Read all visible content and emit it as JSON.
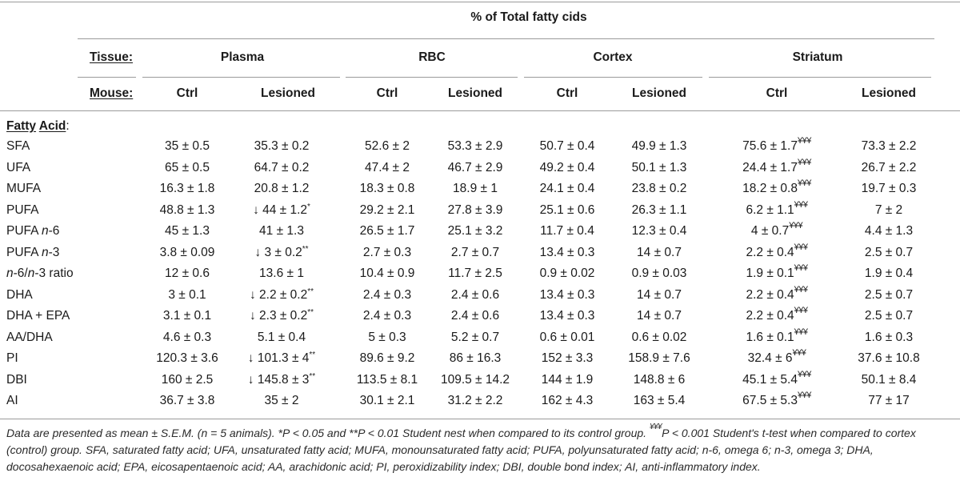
{
  "table": {
    "title": "% of Total fatty cids",
    "tissue_label": "Tissue:",
    "mouse_label": "Mouse:",
    "tissues": [
      "Plasma",
      "RBC",
      "Cortex",
      "Striatum"
    ],
    "groups": [
      "Ctrl",
      "Lesioned",
      "Ctrl",
      "Lesioned",
      "Ctrl",
      "Lesioned",
      "Ctrl",
      "Lesioned"
    ],
    "fatty_acid_header": {
      "word1": "Fatty",
      "word2": "Acid",
      "colon": ":"
    },
    "rows": [
      {
        "label": "SFA",
        "values": [
          "35 ± 0.5",
          "35.3 ± 0.2",
          "52.6 ± 2",
          "53.3 ± 2.9",
          "50.7 ± 0.4",
          "49.9 ± 1.3",
          "75.6 ± 1.7",
          "73.3 ± 2.2"
        ],
        "sup": [
          "",
          "",
          "",
          "",
          "",
          "",
          "¥¥¥",
          ""
        ]
      },
      {
        "label": "UFA",
        "values": [
          "65 ± 0.5",
          "64.7 ± 0.2",
          "47.4 ± 2",
          "46.7 ± 2.9",
          "49.2 ± 0.4",
          "50.1 ± 1.3",
          "24.4 ± 1.7",
          "26.7 ± 2.2"
        ],
        "sup": [
          "",
          "",
          "",
          "",
          "",
          "",
          "¥¥¥",
          ""
        ]
      },
      {
        "label": "MUFA",
        "values": [
          "16.3 ± 1.8",
          "20.8 ± 1.2",
          "18.3 ± 0.8",
          "18.9 ± 1",
          "24.1 ± 0.4",
          "23.8 ± 0.2",
          "18.2 ± 0.8",
          "19.7 ± 0.3"
        ],
        "sup": [
          "",
          "",
          "",
          "",
          "",
          "",
          "¥¥¥",
          ""
        ]
      },
      {
        "label": "PUFA",
        "values": [
          "48.8 ± 1.3",
          "↓ 44 ± 1.2",
          "29.2 ± 2.1",
          "27.8 ± 3.9",
          "25.1 ± 0.6",
          "26.3 ± 1.1",
          "6.2 ± 1.1",
          "7 ± 2"
        ],
        "sup": [
          "",
          "*",
          "",
          "",
          "",
          "",
          "¥¥¥",
          ""
        ]
      },
      {
        "label_pre": "PUFA ",
        "label_it": "n",
        "label_post": "-6",
        "values": [
          "45 ± 1.3",
          "41 ± 1.3",
          "26.5 ± 1.7",
          "25.1 ± 3.2",
          "11.7 ± 0.4",
          "12.3 ± 0.4",
          "4 ± 0.7",
          "4.4 ± 1.3"
        ],
        "sup": [
          "",
          "",
          "",
          "",
          "",
          "",
          "¥¥¥",
          ""
        ]
      },
      {
        "label_pre": "PUFA ",
        "label_it": "n",
        "label_post": "-3",
        "values": [
          "3.8 ± 0.09",
          "↓ 3 ± 0.2",
          "2.7 ± 0.3",
          "2.7 ± 0.7",
          "13.4 ± 0.3",
          "14 ± 0.7",
          "2.2 ± 0.4",
          "2.5 ± 0.7"
        ],
        "sup": [
          "",
          "**",
          "",
          "",
          "",
          "",
          "¥¥¥",
          ""
        ]
      },
      {
        "label_pre": "",
        "label_it": "n",
        "label_post": "-6/",
        "label_it2": "n",
        "label_post2": "-3 ratio",
        "values": [
          "12 ± 0.6",
          "13.6 ± 1",
          "10.4 ± 0.9",
          "11.7 ± 2.5",
          "0.9 ± 0.02",
          "0.9 ± 0.03",
          "1.9 ± 0.1",
          "1.9 ± 0.4"
        ],
        "sup": [
          "",
          "",
          "",
          "",
          "",
          "",
          "¥¥¥",
          ""
        ]
      },
      {
        "label": "DHA",
        "values": [
          "3 ± 0.1",
          "↓ 2.2 ± 0.2",
          "2.4 ± 0.3",
          "2.4 ± 0.6",
          "13.4 ± 0.3",
          "14 ± 0.7",
          "2.2 ± 0.4",
          "2.5 ± 0.7"
        ],
        "sup": [
          "",
          "**",
          "",
          "",
          "",
          "",
          "¥¥¥",
          ""
        ]
      },
      {
        "label": "DHA + EPA",
        "values": [
          "3.1 ± 0.1",
          "↓ 2.3 ± 0.2",
          "2.4 ± 0.3",
          "2.4 ± 0.6",
          "13.4 ± 0.3",
          "14 ± 0.7",
          "2.2 ± 0.4",
          "2.5 ± 0.7"
        ],
        "sup": [
          "",
          "**",
          "",
          "",
          "",
          "",
          "¥¥¥",
          ""
        ]
      },
      {
        "label": "AA/DHA",
        "values": [
          "4.6 ± 0.3",
          "5.1 ± 0.4",
          "5 ± 0.3",
          "5.2 ± 0.7",
          "0.6 ± 0.01",
          "0.6 ± 0.02",
          "1.6 ± 0.1",
          "1.6 ± 0.3"
        ],
        "sup": [
          "",
          "",
          "",
          "",
          "",
          "",
          "¥¥¥",
          ""
        ]
      },
      {
        "label": "PI",
        "values": [
          "120.3 ± 3.6",
          "↓ 101.3 ± 4",
          "89.6 ± 9.2",
          "86 ± 16.3",
          "152 ± 3.3",
          "158.9 ± 7.6",
          "32.4 ± 6",
          "37.6 ± 10.8"
        ],
        "sup": [
          "",
          "**",
          "",
          "",
          "",
          "",
          "¥¥¥",
          ""
        ]
      },
      {
        "label": "DBI",
        "values": [
          "160 ± 2.5",
          "↓ 145.8 ± 3",
          "113.5 ± 8.1",
          "109.5 ± 14.2",
          "144 ± 1.9",
          "148.8 ± 6",
          "45.1 ± 5.4",
          "50.1 ± 8.4"
        ],
        "sup": [
          "",
          "**",
          "",
          "",
          "",
          "",
          "¥¥¥",
          ""
        ]
      },
      {
        "label": "AI",
        "values": [
          "36.7 ± 3.8",
          "35 ± 2",
          "30.1 ± 2.1",
          "31.2 ± 2.2",
          "162 ± 4.3",
          "163 ± 5.4",
          "67.5 ± 5.3",
          "77 ± 17"
        ],
        "sup": [
          "",
          "",
          "",
          "",
          "",
          "",
          "¥¥¥",
          ""
        ]
      }
    ]
  },
  "footnote": {
    "part1": "Data are presented as mean ± S.E.M. (n = 5 animals). *P < 0.05 and **P < 0.01 Student nest when compared to its control group. ",
    "yen": "¥¥¥",
    "part2": "P < 0.001 Student's t-test when compared to cortex (control) group. SFA, saturated fatty acid; UFA, unsaturated fatty acid; MUFA, monounsaturated fatty acid; PUFA, polyunsaturated fatty acid; n-6, omega 6; n-3, omega 3; DHA, docosahexaenoic acid; EPA, eicosapentaenoic acid; AA, arachidonic acid; PI, peroxidizability index; DBI, double bond index; AI, anti-inflammatory index."
  }
}
